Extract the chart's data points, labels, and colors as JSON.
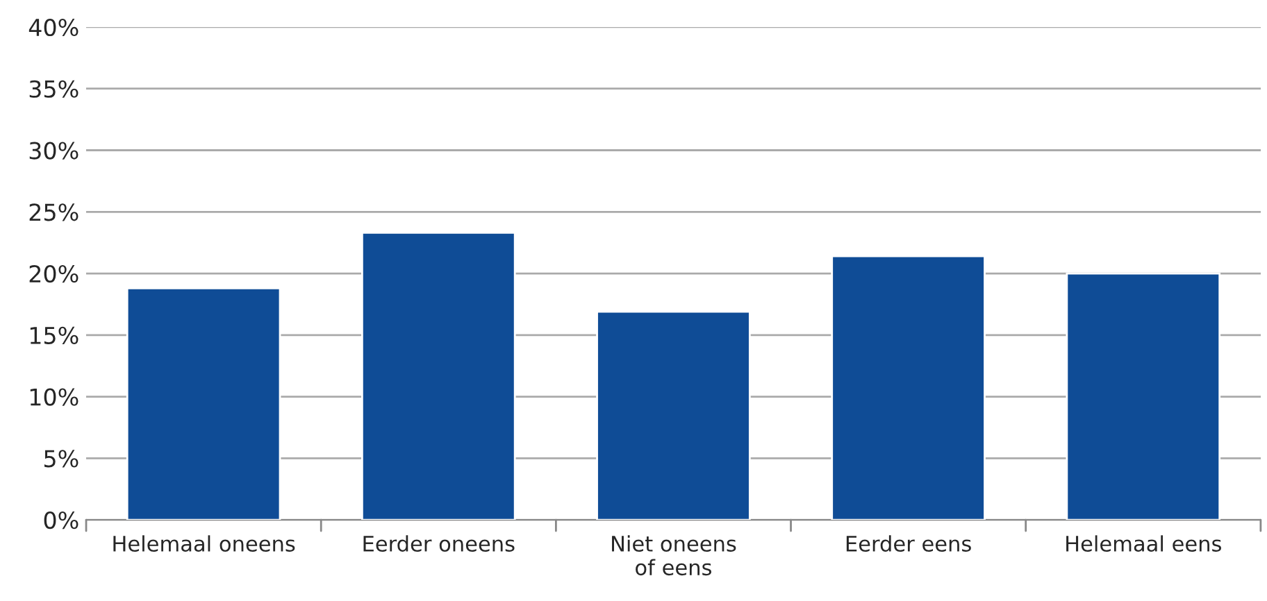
{
  "chart_data": {
    "type": "bar",
    "categories": [
      "Helemaal oneens",
      "Eerder oneens",
      "Niet oneens\nof eens",
      "Eerder eens",
      "Helemaal eens"
    ],
    "values": [
      18.8,
      23.3,
      16.9,
      21.4,
      20.0
    ],
    "color": "#0f4c96",
    "ylim": [
      0,
      40
    ],
    "yticks": [
      {
        "value": 0,
        "label": "0%"
      },
      {
        "value": 5,
        "label": "5%"
      },
      {
        "value": 10,
        "label": "10%"
      },
      {
        "value": 15,
        "label": "15%"
      },
      {
        "value": 20,
        "label": "20%"
      },
      {
        "value": 25,
        "label": "25%"
      },
      {
        "value": 30,
        "label": "30%"
      },
      {
        "value": 35,
        "label": "35%"
      },
      {
        "value": 40,
        "label": "40%"
      }
    ],
    "grid": "y",
    "legend": false
  }
}
